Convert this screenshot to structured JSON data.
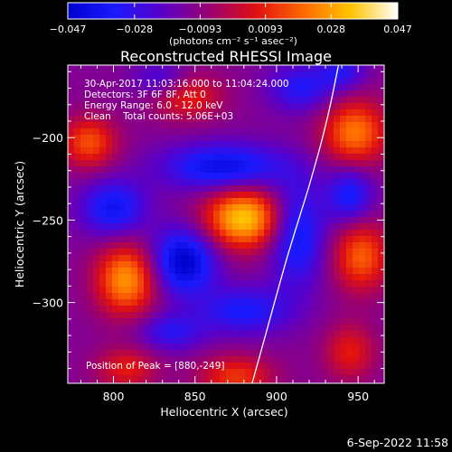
{
  "colorbar": {
    "tick_values": [
      -0.047,
      -0.028,
      -0.0093,
      0.0093,
      0.028,
      0.047
    ],
    "tick_labels": [
      "−0.047",
      "−0.028",
      "−0.0093",
      "0.0093",
      "0.028",
      "0.047"
    ],
    "unit_label": "(photons cm⁻² s⁻¹ asec⁻²)",
    "range": [
      -0.047,
      0.047
    ],
    "colormap": [
      "#0000cc",
      "#1a1aff",
      "#5a00c8",
      "#9a0070",
      "#e01010",
      "#ff6a00",
      "#ffc400",
      "#ffffff"
    ]
  },
  "chart_data": {
    "type": "heatmap",
    "title": "Reconstructed RHESSI Image",
    "xlabel": "Heliocentric X (arcsec)",
    "ylabel": "Heliocentric Y (arcsec)",
    "xlim": [
      772,
      966
    ],
    "ylim": [
      -349,
      -156
    ],
    "x_ticks": [
      800,
      850,
      900,
      950
    ],
    "x_tick_labels": [
      "800",
      "850",
      "900",
      "950"
    ],
    "y_ticks": [
      -200,
      -250,
      -300
    ],
    "y_tick_labels": [
      "−200",
      "−250",
      "−300"
    ],
    "sources": [
      {
        "x": 880,
        "y": -249,
        "sigma_x": 17,
        "sigma_y": 13,
        "amplitude": 0.047
      },
      {
        "x": 808,
        "y": -286,
        "sigma_x": 13,
        "sigma_y": 15,
        "amplitude": 0.039
      },
      {
        "x": 785,
        "y": -203,
        "sigma_x": 12,
        "sigma_y": 11,
        "amplitude": 0.028
      },
      {
        "x": 948,
        "y": -197,
        "sigma_x": 14,
        "sigma_y": 14,
        "amplitude": 0.034
      },
      {
        "x": 952,
        "y": -272,
        "sigma_x": 12,
        "sigma_y": 15,
        "amplitude": 0.03
      },
      {
        "x": 845,
        "y": -175,
        "sigma_x": 15,
        "sigma_y": 10,
        "amplitude": 0.022
      },
      {
        "x": 875,
        "y": -345,
        "sigma_x": 16,
        "sigma_y": 9,
        "amplitude": 0.024
      },
      {
        "x": 808,
        "y": -340,
        "sigma_x": 13,
        "sigma_y": 9,
        "amplitude": 0.02
      },
      {
        "x": 945,
        "y": -330,
        "sigma_x": 11,
        "sigma_y": 12,
        "amplitude": 0.02
      }
    ],
    "negative_sources": [
      {
        "x": 868,
        "y": -218,
        "sigma_x": 26,
        "sigma_y": 10,
        "amplitude": -0.03
      },
      {
        "x": 843,
        "y": -275,
        "sigma_x": 14,
        "sigma_y": 14,
        "amplitude": -0.036
      },
      {
        "x": 912,
        "y": -258,
        "sigma_x": 12,
        "sigma_y": 22,
        "amplitude": -0.028
      },
      {
        "x": 800,
        "y": -243,
        "sigma_x": 14,
        "sigma_y": 12,
        "amplitude": -0.026
      },
      {
        "x": 945,
        "y": -235,
        "sigma_x": 10,
        "sigma_y": 12,
        "amplitude": -0.024
      },
      {
        "x": 880,
        "y": -305,
        "sigma_x": 20,
        "sigma_y": 10,
        "amplitude": -0.022
      },
      {
        "x": 835,
        "y": -318,
        "sigma_x": 14,
        "sigma_y": 8,
        "amplitude": -0.018
      },
      {
        "x": 915,
        "y": -170,
        "sigma_x": 14,
        "sigma_y": 10,
        "amplitude": -0.02
      },
      {
        "x": 830,
        "y": -165,
        "sigma_x": 12,
        "sigma_y": 8,
        "amplitude": -0.016
      },
      {
        "x": 940,
        "y": -160,
        "sigma_x": 10,
        "sigma_y": 8,
        "amplitude": -0.018
      }
    ],
    "background": -0.012,
    "limb_curve": [
      [
        938,
        -156
      ],
      [
        931,
        -190
      ],
      [
        920,
        -230
      ],
      [
        907,
        -270
      ],
      [
        896,
        -310
      ],
      [
        885,
        -349
      ]
    ],
    "info_lines": [
      "30-Apr-2017 11:03:16.000 to 11:04:24.000",
      "Detectors: 3F 6F 8F, Att 0",
      "Energy Range: 6.0 - 12.0 keV",
      "Clean    Total counts: 5.06E+03"
    ],
    "peak_text": "Position of Peak = [880,-249]"
  },
  "footer": {
    "timestamp": "6-Sep-2022 11:58"
  }
}
